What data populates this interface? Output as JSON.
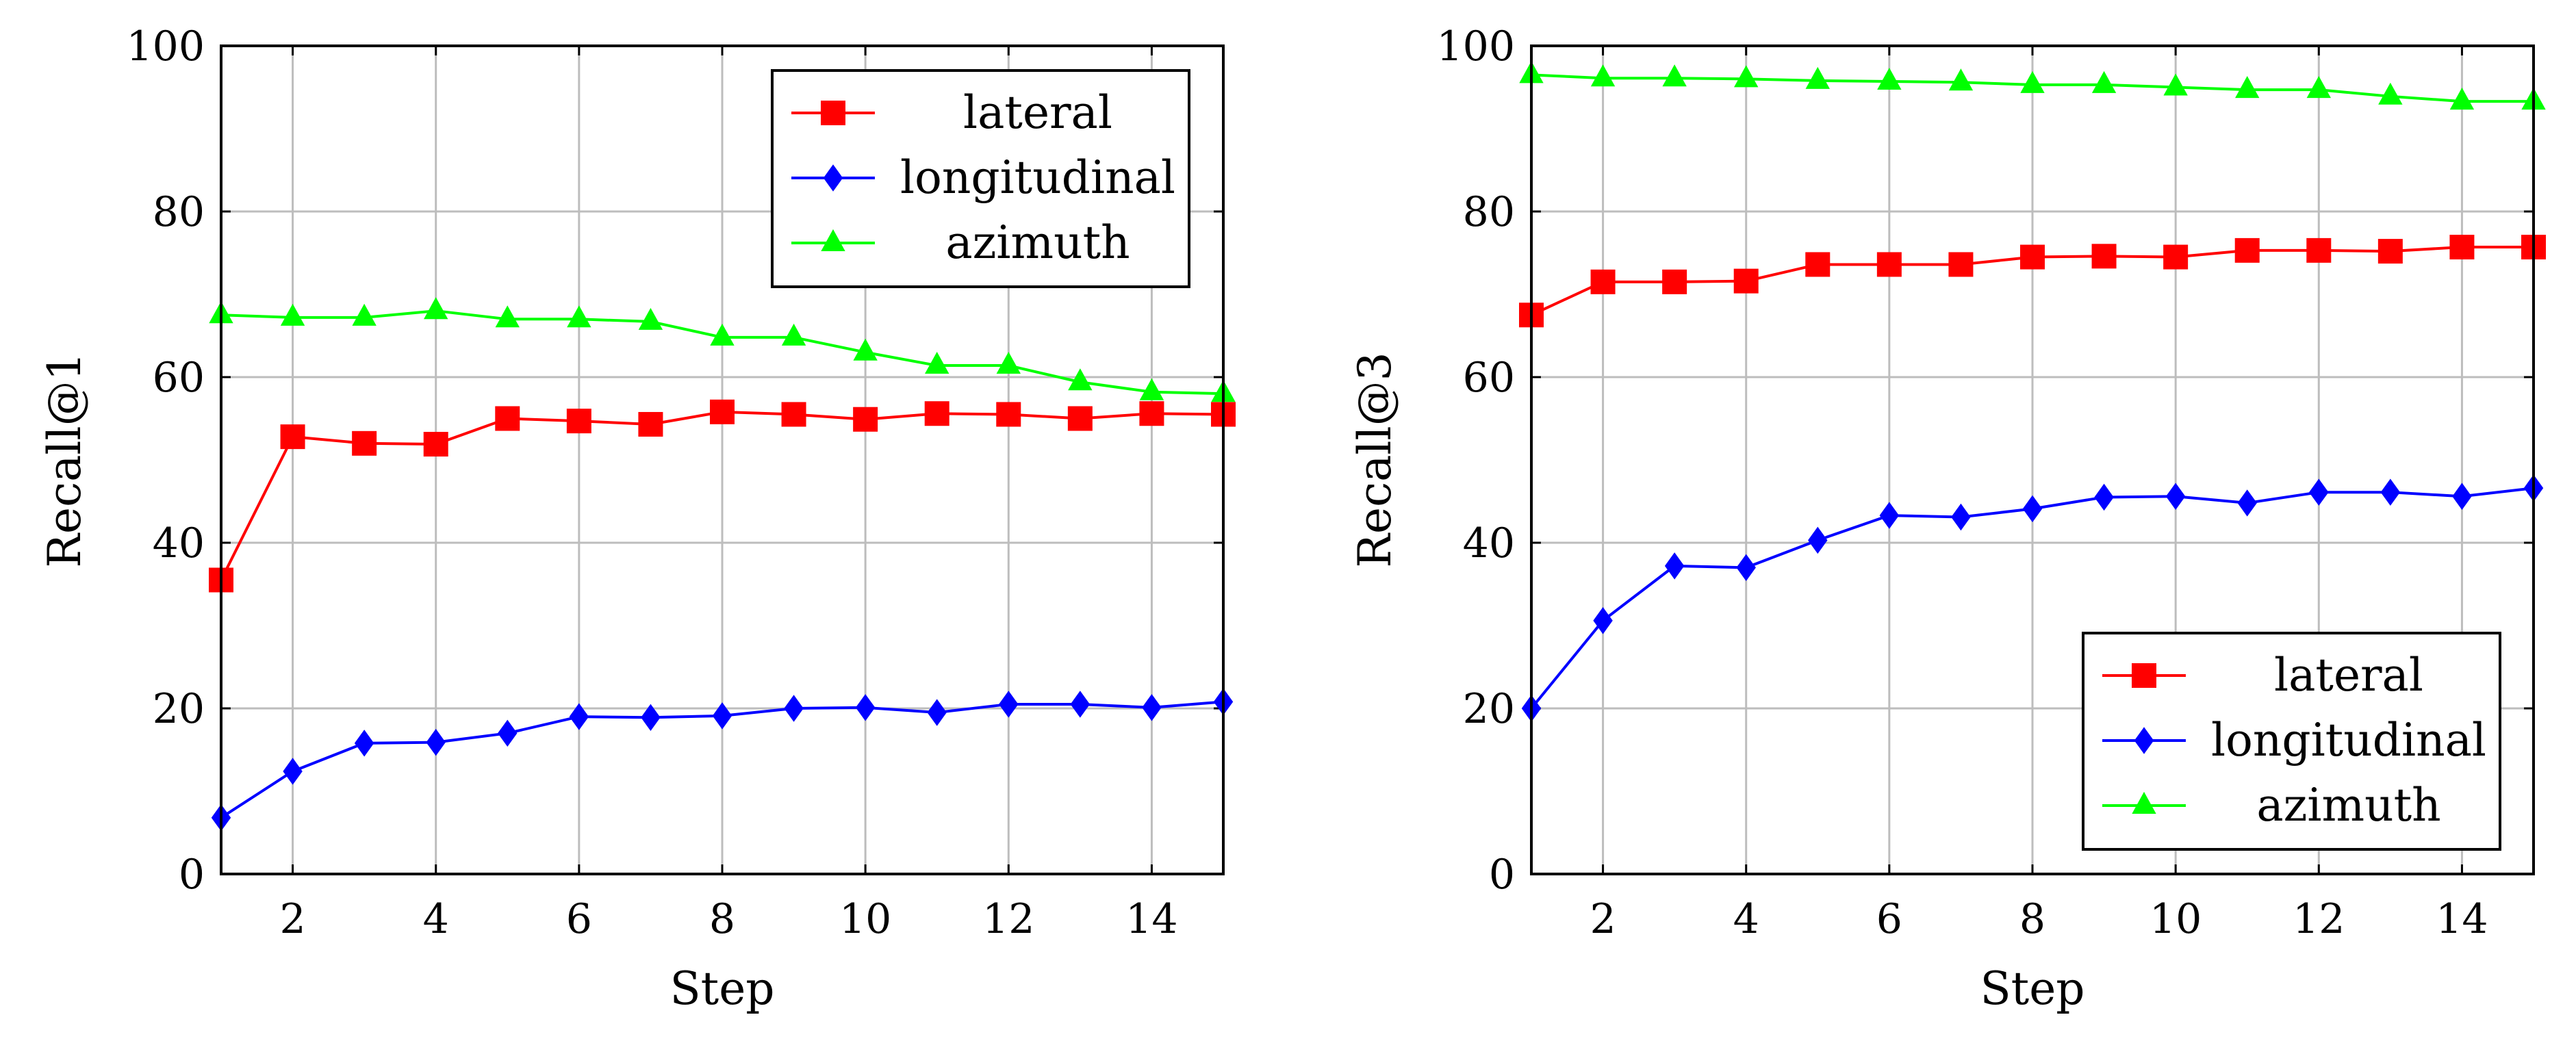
{
  "chart_data": [
    {
      "type": "line",
      "title": "",
      "xlabel": "Step",
      "ylabel": "Recall@1",
      "xlim": [
        1,
        15
      ],
      "ylim": [
        0,
        100
      ],
      "xticks": [
        2,
        4,
        6,
        8,
        10,
        12,
        14
      ],
      "yticks": [
        0,
        20,
        40,
        60,
        80,
        100
      ],
      "grid": true,
      "legend_position": "top-right",
      "x": [
        1,
        2,
        3,
        4,
        5,
        6,
        7,
        8,
        9,
        10,
        11,
        12,
        13,
        14,
        15
      ],
      "series": [
        {
          "name": "lateral",
          "color": "#ff0000",
          "marker": "square",
          "values": [
            35.5,
            52.8,
            52.0,
            51.9,
            55.0,
            54.7,
            54.3,
            55.8,
            55.5,
            54.9,
            55.6,
            55.5,
            55.0,
            55.6,
            55.5
          ]
        },
        {
          "name": "longitudinal",
          "color": "#0000ff",
          "marker": "diamond",
          "values": [
            6.8,
            12.4,
            15.8,
            15.9,
            17.0,
            19.0,
            18.9,
            19.1,
            20.0,
            20.1,
            19.5,
            20.5,
            20.5,
            20.1,
            20.8
          ]
        },
        {
          "name": "azimuth",
          "color": "#00ff00",
          "marker": "triangle",
          "values": [
            67.5,
            67.2,
            67.2,
            68.0,
            67.0,
            67.0,
            66.7,
            64.8,
            64.8,
            63.0,
            61.4,
            61.4,
            59.4,
            58.2,
            58.0
          ]
        }
      ]
    },
    {
      "type": "line",
      "title": "",
      "xlabel": "Step",
      "ylabel": "Recall@3",
      "xlim": [
        1,
        15
      ],
      "ylim": [
        0,
        100
      ],
      "xticks": [
        2,
        4,
        6,
        8,
        10,
        12,
        14
      ],
      "yticks": [
        0,
        20,
        40,
        60,
        80,
        100
      ],
      "grid": true,
      "legend_position": "bottom-right",
      "x": [
        1,
        2,
        3,
        4,
        5,
        6,
        7,
        8,
        9,
        10,
        11,
        12,
        13,
        14,
        15
      ],
      "series": [
        {
          "name": "lateral",
          "color": "#ff0000",
          "marker": "square",
          "values": [
            67.5,
            71.5,
            71.5,
            71.6,
            73.6,
            73.6,
            73.6,
            74.5,
            74.6,
            74.5,
            75.3,
            75.3,
            75.2,
            75.7,
            75.7
          ]
        },
        {
          "name": "longitudinal",
          "color": "#0000ff",
          "marker": "diamond",
          "values": [
            20.0,
            30.6,
            37.2,
            37.0,
            40.3,
            43.3,
            43.1,
            44.1,
            45.5,
            45.6,
            44.8,
            46.1,
            46.1,
            45.6,
            46.6
          ]
        },
        {
          "name": "azimuth",
          "color": "#00ff00",
          "marker": "triangle",
          "values": [
            96.5,
            96.1,
            96.1,
            96.0,
            95.8,
            95.7,
            95.6,
            95.3,
            95.3,
            95.0,
            94.7,
            94.7,
            93.9,
            93.3,
            93.3
          ]
        }
      ]
    }
  ]
}
